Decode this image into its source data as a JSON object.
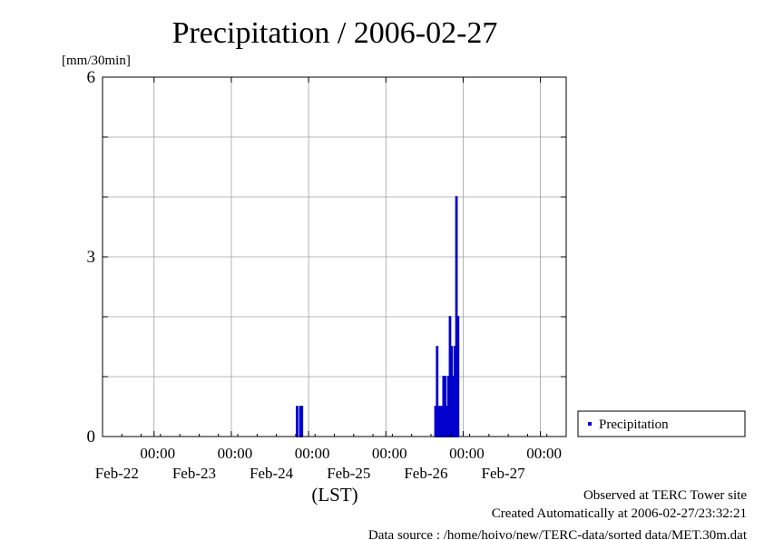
{
  "chart_data": {
    "type": "bar",
    "title": "Precipitation / 2006-02-27",
    "ylabel": "[mm/30min]",
    "xlabel": "(LST)",
    "ylim": [
      0,
      6
    ],
    "xlim": [
      "2006-02-21T08:00",
      "2006-02-27T08:00"
    ],
    "yticks": [
      "0",
      "3",
      "6"
    ],
    "xticks": [
      {
        "time": "00:00",
        "date": "Feb-22"
      },
      {
        "time": "00:00",
        "date": "Feb-23"
      },
      {
        "time": "00:00",
        "date": "Feb-24"
      },
      {
        "time": "00:00",
        "date": "Feb-25"
      },
      {
        "time": "00:00",
        "date": "Feb-26"
      },
      {
        "time": "00:00",
        "date": "Feb-27"
      }
    ],
    "xtick_values": [
      "2006-02-22T00:00",
      "2006-02-23T00:00",
      "2006-02-24T00:00",
      "2006-02-25T00:00",
      "2006-02-26T00:00",
      "2006-02-27T00:00"
    ],
    "bar_color": "#0000cc",
    "grid": true,
    "legend_position": "right",
    "series": [
      {
        "name": "Precipitation",
        "points": [
          {
            "x": "2006-02-23T20:30",
            "y": 0.5
          },
          {
            "x": "2006-02-23T21:30",
            "y": 0.5
          },
          {
            "x": "2006-02-23T22:00",
            "y": 0.5
          },
          {
            "x": "2006-02-25T15:30",
            "y": 0.5
          },
          {
            "x": "2006-02-25T16:00",
            "y": 1.5
          },
          {
            "x": "2006-02-25T16:30",
            "y": 0.5
          },
          {
            "x": "2006-02-25T17:00",
            "y": 0.5
          },
          {
            "x": "2006-02-25T17:30",
            "y": 0.5
          },
          {
            "x": "2006-02-25T18:00",
            "y": 1.0
          },
          {
            "x": "2006-02-25T18:30",
            "y": 1.0
          },
          {
            "x": "2006-02-25T19:00",
            "y": 0.5
          },
          {
            "x": "2006-02-25T19:30",
            "y": 1.0
          },
          {
            "x": "2006-02-25T20:00",
            "y": 2.0
          },
          {
            "x": "2006-02-25T20:30",
            "y": 1.5
          },
          {
            "x": "2006-02-25T21:00",
            "y": 1.0
          },
          {
            "x": "2006-02-25T21:30",
            "y": 1.5
          },
          {
            "x": "2006-02-25T22:00",
            "y": 4.0
          },
          {
            "x": "2006-02-25T22:30",
            "y": 2.0
          }
        ]
      }
    ]
  },
  "footer": {
    "line1": "Observed at TERC Tower site",
    "line2": "Created Automatically at 2006-02-27/23:32:21",
    "line3": "Data source : /home/hoivo/new/TERC-data/sorted  data/MET.30m.dat"
  }
}
